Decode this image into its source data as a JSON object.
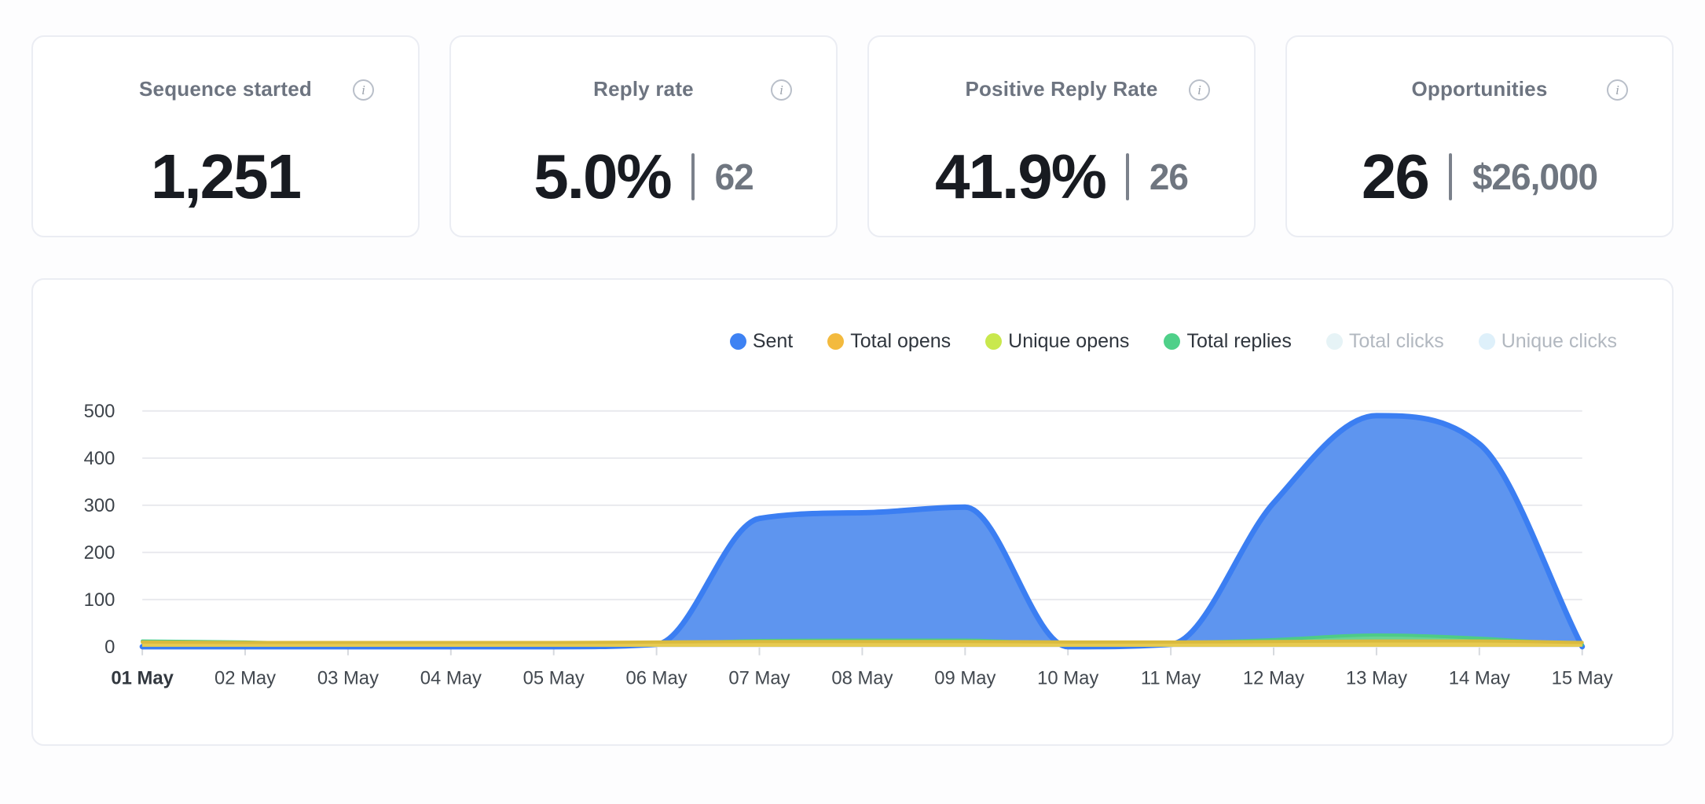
{
  "page": {
    "background": "#fdfdfe"
  },
  "stat_cards": [
    {
      "id": "sequence-started",
      "title": "Sequence started",
      "info_icon": "info-icon",
      "primary": "1,251",
      "secondary": null
    },
    {
      "id": "reply-rate",
      "title": "Reply rate",
      "info_icon": "info-icon",
      "primary": "5.0%",
      "secondary": "62"
    },
    {
      "id": "positive-reply-rate",
      "title": "Positive Reply Rate",
      "info_icon": "info-icon",
      "primary": "41.9%",
      "secondary": "26"
    },
    {
      "id": "opportunities",
      "title": "Opportunities",
      "info_icon": "info-icon",
      "primary": "26",
      "secondary": "$26,000"
    }
  ],
  "chart_data": {
    "type": "area",
    "categories": [
      "01 May",
      "02 May",
      "03 May",
      "04 May",
      "05 May",
      "06 May",
      "07 May",
      "08 May",
      "09 May",
      "10 May",
      "11 May",
      "12 May",
      "13 May",
      "14 May",
      "15 May"
    ],
    "x_bold_labels": [
      "01 May"
    ],
    "ylim": [
      0,
      500
    ],
    "y_ticks": [
      0,
      100,
      200,
      300,
      400,
      500
    ],
    "grid": "horizontal",
    "legend_position": "top-right",
    "series": [
      {
        "name": "Sent",
        "legend_color": "#3e82f3",
        "fill": "#5e95ef",
        "stroke": "#3b7ef2",
        "stroke_width": 7,
        "visible": true,
        "z": 0,
        "values": [
          0,
          0,
          0,
          0,
          0,
          5,
          272,
          284,
          296,
          0,
          5,
          305,
          490,
          430,
          0
        ]
      },
      {
        "name": "Total opens",
        "legend_color": "#f3ba3e",
        "fill": "#e7ca51",
        "stroke": "#d9ba3e",
        "stroke_width": 4,
        "visible": true,
        "z": 3,
        "values": [
          10,
          9,
          9,
          9,
          9,
          10,
          11,
          11,
          11,
          10,
          10,
          11,
          12,
          12,
          9
        ]
      },
      {
        "name": "Unique opens",
        "legend_color": "#c9e84d",
        "fill": "#cde457",
        "stroke": "#c0da48",
        "stroke_width": 3,
        "visible": true,
        "z": 2,
        "values": [
          8,
          8,
          8,
          8,
          8,
          8,
          9,
          9,
          9,
          8,
          8,
          9,
          10,
          10,
          8
        ]
      },
      {
        "name": "Total replies",
        "legend_color": "#4fd089",
        "fill": "#6ad395",
        "stroke": "#4ecb86",
        "stroke_width": 4,
        "visible": true,
        "z": 1,
        "values": [
          12,
          10,
          5,
          5,
          5,
          6,
          13,
          14,
          14,
          6,
          8,
          15,
          25,
          18,
          4
        ]
      },
      {
        "name": "Total clicks",
        "legend_color": "#e6f3f6",
        "visible": false,
        "z": 4,
        "values": null
      },
      {
        "name": "Unique clicks",
        "legend_color": "#def0fa",
        "visible": false,
        "z": 5,
        "values": null
      }
    ],
    "axis_colors": {
      "grid": "#e9eaee",
      "tick": "#d6d9de",
      "y_label": "#3d434a",
      "x_label": "#42484f",
      "x_label_bold": "#32383f"
    }
  }
}
